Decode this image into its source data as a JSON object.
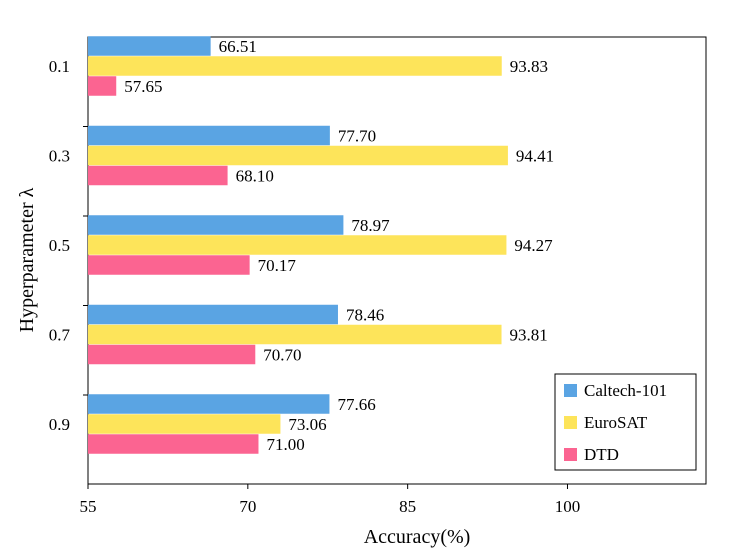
{
  "chart_data": {
    "type": "bar",
    "orientation": "horizontal",
    "title": "",
    "xlabel": "Accuracy(%)",
    "ylabel": "Hyperparameter λ",
    "categories": [
      "0.1",
      "0.3",
      "0.5",
      "0.7",
      "0.9"
    ],
    "xlim": [
      55,
      113
    ],
    "xticks": [
      55,
      70,
      85,
      100
    ],
    "grid": false,
    "legend_position": "bottom-right",
    "series": [
      {
        "name": "Caltech-101",
        "color": "#5aa4e3",
        "values": [
          66.51,
          77.7,
          78.97,
          78.46,
          77.66
        ],
        "labels": [
          "66.51",
          "77.70",
          "78.97",
          "78.46",
          "77.66"
        ]
      },
      {
        "name": "EuroSAT",
        "color": "#fde45a",
        "values": [
          93.83,
          94.41,
          94.27,
          93.81,
          73.06
        ],
        "labels": [
          "93.83",
          "94.41",
          "94.27",
          "93.81",
          "73.06"
        ]
      },
      {
        "name": "DTD",
        "color": "#fb6491",
        "values": [
          57.65,
          68.1,
          70.17,
          70.7,
          71.0
        ],
        "labels": [
          "57.65",
          "68.10",
          "70.17",
          "70.70",
          "71.00"
        ]
      }
    ]
  }
}
